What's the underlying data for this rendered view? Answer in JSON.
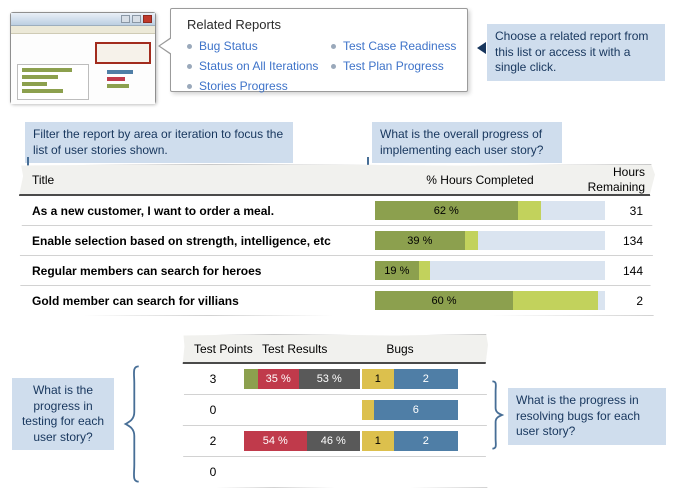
{
  "colors": {
    "green": "#8ca04e",
    "light_green": "#c2d25c",
    "bar_track": "#dae4f0",
    "red": "#c03a4b",
    "dark_gray": "#595959",
    "yellow": "#dcc04d",
    "blue": "#4f7ea6",
    "callout_bg": "#cfdded",
    "callout_text": "#17365d",
    "link_blue": "#3e73c9",
    "connector": "#476e96"
  },
  "related_reports": {
    "title": "Related Reports",
    "columns": [
      [
        "Bug Status",
        "Status on All Iterations",
        "Stories Progress"
      ],
      [
        "Test Case Readiness",
        "Test Plan Progress"
      ]
    ]
  },
  "callouts": {
    "choose_related": "Choose a related report from this list or access it with a single click.",
    "filter": "Filter the report by area or iteration to focus the list of user stories shown.",
    "overall_progress": "What is the overall progress of implementing each user story?",
    "testing_progress": "What is the progress in testing for each user story?",
    "bug_progress": "What is the progress in resolving bugs for each user story?"
  },
  "stories_table": {
    "header": {
      "title": "Title",
      "hours_completed": "% Hours Completed",
      "hours_remaining": "Hours Remaining"
    },
    "rows": [
      {
        "title": "As a new customer, I want to order a meal.",
        "completed_pct": 62,
        "completed_label": "62 %",
        "in_progress_pct": 10,
        "hours_remaining": "31"
      },
      {
        "title": "Enable selection based on strength, intelligence, etc",
        "completed_pct": 39,
        "completed_label": "39 %",
        "in_progress_pct": 6,
        "hours_remaining": "134"
      },
      {
        "title": "Regular members can search for heroes",
        "completed_pct": 19,
        "completed_label": "19 %",
        "in_progress_pct": 5,
        "hours_remaining": "144"
      },
      {
        "title": "Gold member can search for villians",
        "completed_pct": 60,
        "completed_label": "60 %",
        "in_progress_pct": 37,
        "hours_remaining": "2"
      }
    ]
  },
  "test_table": {
    "header": {
      "points": "Test Points",
      "results": "Test Results",
      "bugs": "Bugs"
    },
    "rows": [
      {
        "points": "3",
        "results": [
          {
            "pct": 12,
            "label": "",
            "color": "green"
          },
          {
            "pct": 35,
            "label": "35 %",
            "color": "red"
          },
          {
            "pct": 53,
            "label": "53 %",
            "color": "dark_gray"
          }
        ],
        "bugs": [
          {
            "pct": 33,
            "label": "1",
            "color": "yellow"
          },
          {
            "pct": 67,
            "label": "2",
            "color": "blue"
          }
        ]
      },
      {
        "points": "0",
        "results": [],
        "bugs": [
          {
            "pct": 12,
            "label": "",
            "color": "yellow"
          },
          {
            "pct": 88,
            "label": "6",
            "color": "blue"
          }
        ]
      },
      {
        "points": "2",
        "results": [
          {
            "pct": 54,
            "label": "54 %",
            "color": "red"
          },
          {
            "pct": 46,
            "label": "46 %",
            "color": "dark_gray"
          }
        ],
        "bugs": [
          {
            "pct": 33,
            "label": "1",
            "color": "yellow"
          },
          {
            "pct": 67,
            "label": "2",
            "color": "blue"
          }
        ]
      },
      {
        "points": "0",
        "results": [],
        "bugs": []
      }
    ]
  }
}
